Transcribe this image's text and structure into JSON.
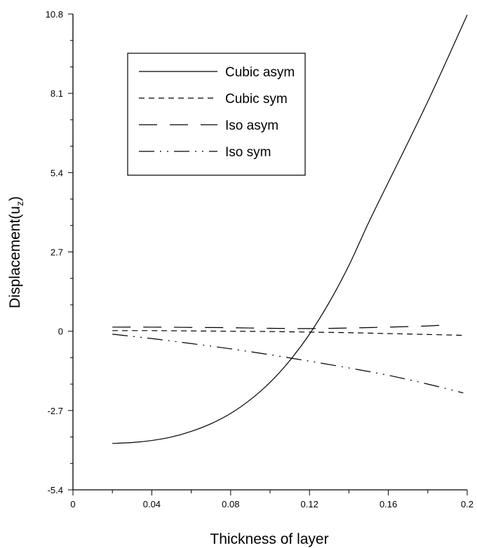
{
  "chart_data": {
    "type": "line",
    "title": "",
    "xlabel": "Thickness of layer",
    "ylabel": "Displacement(u",
    "ylabel_subscript": "z",
    "ylabel_suffix": ")",
    "xlim": [
      0,
      0.2
    ],
    "ylim": [
      -5.4,
      10.8
    ],
    "x_ticks": [
      0,
      0.04,
      0.08,
      0.12,
      0.16,
      0.2
    ],
    "x_tick_labels": [
      "0",
      "0.04",
      "0.08",
      "0.12",
      "0.16",
      "0.2"
    ],
    "y_ticks": [
      -5.4,
      -2.7,
      0,
      2.7,
      5.4,
      8.1,
      10.8
    ],
    "y_tick_labels": [
      "-5.4",
      "-2.7",
      "0",
      "2.7",
      "5.4",
      "8.1",
      "10.8"
    ],
    "grid": false,
    "legend_position": "top-left",
    "series": [
      {
        "name": "Cubic asym",
        "style": "solid",
        "x": [
          0.02,
          0.03,
          0.04,
          0.05,
          0.06,
          0.07,
          0.08,
          0.09,
          0.1,
          0.11,
          0.12,
          0.13,
          0.14,
          0.15,
          0.16,
          0.17,
          0.18,
          0.19,
          0.2
        ],
        "y": [
          -3.82,
          -3.79,
          -3.72,
          -3.6,
          -3.41,
          -3.15,
          -2.8,
          -2.33,
          -1.74,
          -1.0,
          -0.1,
          0.98,
          2.24,
          3.7,
          5.07,
          6.43,
          7.82,
          9.28,
          10.77
        ]
      },
      {
        "name": "Cubic sym",
        "style": "dash",
        "x": [
          0.02,
          0.04,
          0.06,
          0.08,
          0.1,
          0.12,
          0.14,
          0.16,
          0.18,
          0.198
        ],
        "y": [
          0.02,
          0.02,
          0.01,
          0.0,
          -0.01,
          -0.03,
          -0.05,
          -0.08,
          -0.11,
          -0.14
        ]
      },
      {
        "name": "Iso asym",
        "style": "longdash",
        "x": [
          0.02,
          0.04,
          0.06,
          0.08,
          0.1,
          0.12,
          0.14,
          0.16,
          0.18,
          0.19
        ],
        "y": [
          0.14,
          0.14,
          0.13,
          0.12,
          0.1,
          0.09,
          0.11,
          0.14,
          0.18,
          0.22
        ]
      },
      {
        "name": "Iso sym",
        "style": "dashdotdot",
        "x": [
          0.02,
          0.04,
          0.06,
          0.08,
          0.1,
          0.12,
          0.14,
          0.16,
          0.18,
          0.198
        ],
        "y": [
          -0.1,
          -0.25,
          -0.42,
          -0.6,
          -0.8,
          -1.02,
          -1.25,
          -1.5,
          -1.8,
          -2.1
        ]
      }
    ]
  }
}
